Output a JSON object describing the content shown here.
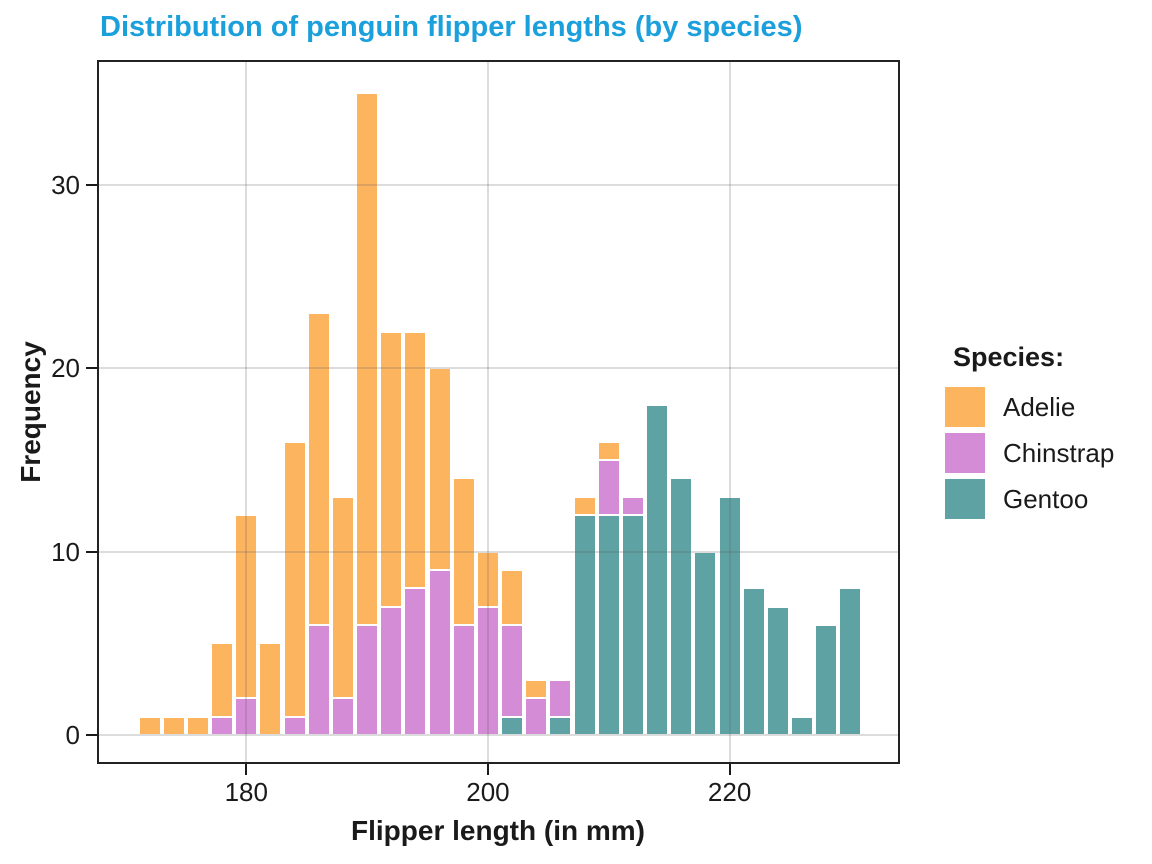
{
  "title": {
    "text": "Distribution of penguin flipper lengths (by species)",
    "color": "#1BA0DC"
  },
  "axes": {
    "x": {
      "label": "Flipper length (in mm)",
      "ticks": [
        180,
        200,
        220
      ],
      "range": [
        171,
        231
      ]
    },
    "y": {
      "label": "Frequency",
      "ticks": [
        0,
        10,
        20,
        30
      ],
      "range": [
        0,
        35
      ]
    }
  },
  "legend": {
    "title": "Species:",
    "entries": [
      {
        "label": "Adelie",
        "color": "#FDB45F"
      },
      {
        "label": "Chinstrap",
        "color": "#D38CD5"
      },
      {
        "label": "Gentoo",
        "color": "#5EA2A3"
      }
    ]
  },
  "chart_data": {
    "type": "bar",
    "subtype": "stacked-histogram",
    "bin_width": 2,
    "bin_start": 171,
    "bin_end": 231,
    "bin_centers": [
      172,
      174,
      176,
      178,
      180,
      182,
      184,
      186,
      188,
      190,
      192,
      194,
      196,
      198,
      200,
      202,
      204,
      206,
      208,
      210,
      212,
      214,
      216,
      218,
      220,
      222,
      224,
      226,
      228,
      230
    ],
    "series": [
      {
        "name": "Adelie",
        "color": "#FDB45F",
        "values": [
          1,
          1,
          1,
          4,
          10,
          5,
          15,
          17,
          11,
          29,
          15,
          14,
          11,
          8,
          3,
          3,
          1,
          0,
          1,
          1,
          0,
          0,
          0,
          0,
          0,
          0,
          0,
          0,
          0,
          0
        ]
      },
      {
        "name": "Chinstrap",
        "color": "#D38CD5",
        "values": [
          0,
          0,
          0,
          1,
          2,
          0,
          1,
          6,
          2,
          6,
          7,
          8,
          9,
          6,
          7,
          5,
          2,
          2,
          0,
          3,
          1,
          0,
          0,
          0,
          0,
          0,
          0,
          0,
          0,
          0
        ]
      },
      {
        "name": "Gentoo",
        "color": "#5EA2A3",
        "values": [
          0,
          0,
          0,
          0,
          0,
          0,
          0,
          0,
          0,
          0,
          0,
          0,
          0,
          0,
          0,
          1,
          0,
          1,
          12,
          12,
          12,
          18,
          14,
          10,
          13,
          8,
          7,
          1,
          6,
          8
        ]
      }
    ],
    "stack_order_bottom_to_top": [
      "Gentoo",
      "Chinstrap",
      "Adelie"
    ],
    "title": "Distribution of penguin flipper lengths (by species)",
    "xlabel": "Flipper length (in mm)",
    "ylabel": "Frequency",
    "grid": true,
    "legend_position": "right"
  }
}
